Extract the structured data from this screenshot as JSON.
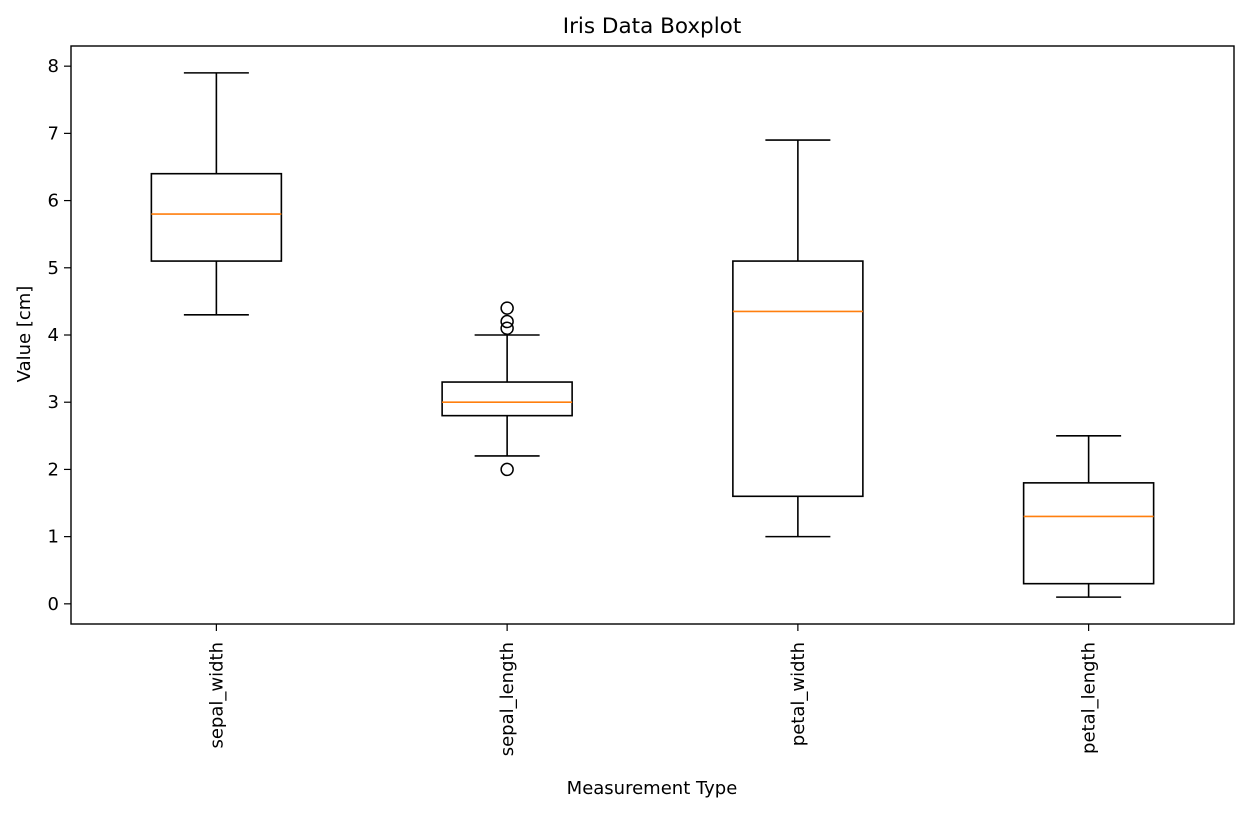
{
  "chart_data": {
    "type": "boxplot",
    "title": "Iris Data Boxplot",
    "xlabel": "Measurement Type",
    "ylabel": "Value [cm]",
    "ylim": [
      -0.3,
      8.3
    ],
    "yticks": [
      0,
      1,
      2,
      3,
      4,
      5,
      6,
      7,
      8
    ],
    "categories": [
      "sepal_width",
      "sepal_length",
      "petal_width",
      "petal_length"
    ],
    "boxes": [
      {
        "category": "sepal_width",
        "whisker_low": 4.3,
        "q1": 5.1,
        "median": 5.8,
        "q3": 6.4,
        "whisker_high": 7.9,
        "outliers": []
      },
      {
        "category": "sepal_length",
        "whisker_low": 2.2,
        "q1": 2.8,
        "median": 3.0,
        "q3": 3.3,
        "whisker_high": 4.0,
        "outliers": [
          2.0,
          4.1,
          4.2,
          4.4
        ]
      },
      {
        "category": "petal_width",
        "whisker_low": 1.0,
        "q1": 1.6,
        "median": 4.35,
        "q3": 5.1,
        "whisker_high": 6.9,
        "outliers": []
      },
      {
        "category": "petal_length",
        "whisker_low": 0.1,
        "q1": 0.3,
        "median": 1.3,
        "q3": 1.8,
        "whisker_high": 2.5,
        "outliers": []
      }
    ],
    "grid": false,
    "colors": {
      "box": "#000000",
      "median": "#ff7f0e",
      "outlier": "#000000"
    }
  }
}
